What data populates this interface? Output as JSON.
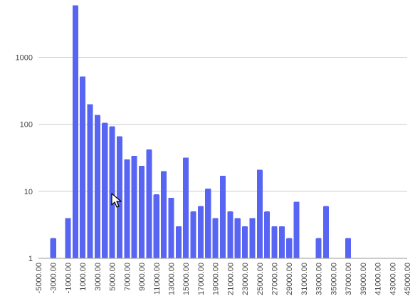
{
  "chart_data": {
    "type": "bar",
    "title": "",
    "xlabel": "",
    "ylabel": "",
    "y_scale": "log",
    "ylim": [
      1,
      6500
    ],
    "xlim": [
      -5000,
      45000
    ],
    "bin_width": 1000,
    "grid": true,
    "bar_color": "#5865F2",
    "y_ticks": [
      {
        "value": 1,
        "label": "1"
      },
      {
        "value": 10,
        "label": "10"
      },
      {
        "value": 100,
        "label": "100"
      },
      {
        "value": 1000,
        "label": "1000"
      }
    ],
    "x_ticks": [
      "-5000.00",
      "-3000.00",
      "-1000.00",
      "1000.00",
      "3000.00",
      "5000.00",
      "7000.00",
      "9000.00",
      "11000.00",
      "13000.00",
      "15000.00",
      "17000.00",
      "19000.00",
      "21000.00",
      "23000.00",
      "25000.00",
      "27000.00",
      "29000.00",
      "31000.00",
      "33000.00",
      "35000.00",
      "37000.00",
      "39000.00",
      "41000.00",
      "43000.00",
      "45000.00"
    ],
    "bars": [
      {
        "x": -3000,
        "value": 2
      },
      {
        "x": -1000,
        "value": 4
      },
      {
        "x": 0,
        "value": 6000
      },
      {
        "x": 1000,
        "value": 520
      },
      {
        "x": 2000,
        "value": 200
      },
      {
        "x": 3000,
        "value": 138
      },
      {
        "x": 4000,
        "value": 105
      },
      {
        "x": 5000,
        "value": 93
      },
      {
        "x": 6000,
        "value": 66
      },
      {
        "x": 7000,
        "value": 30
      },
      {
        "x": 8000,
        "value": 34
      },
      {
        "x": 9000,
        "value": 24
      },
      {
        "x": 10000,
        "value": 42
      },
      {
        "x": 11000,
        "value": 9
      },
      {
        "x": 12000,
        "value": 20
      },
      {
        "x": 13000,
        "value": 8
      },
      {
        "x": 14000,
        "value": 3
      },
      {
        "x": 15000,
        "value": 32
      },
      {
        "x": 16000,
        "value": 5
      },
      {
        "x": 17000,
        "value": 6
      },
      {
        "x": 18000,
        "value": 11
      },
      {
        "x": 19000,
        "value": 4
      },
      {
        "x": 20000,
        "value": 17
      },
      {
        "x": 21000,
        "value": 5
      },
      {
        "x": 22000,
        "value": 4
      },
      {
        "x": 23000,
        "value": 3
      },
      {
        "x": 24000,
        "value": 4
      },
      {
        "x": 25000,
        "value": 21
      },
      {
        "x": 26000,
        "value": 5
      },
      {
        "x": 27000,
        "value": 3
      },
      {
        "x": 28000,
        "value": 3
      },
      {
        "x": 29000,
        "value": 2
      },
      {
        "x": 30000,
        "value": 7
      },
      {
        "x": 33000,
        "value": 2
      },
      {
        "x": 34000,
        "value": 6
      },
      {
        "x": 37000,
        "value": 2
      }
    ]
  }
}
